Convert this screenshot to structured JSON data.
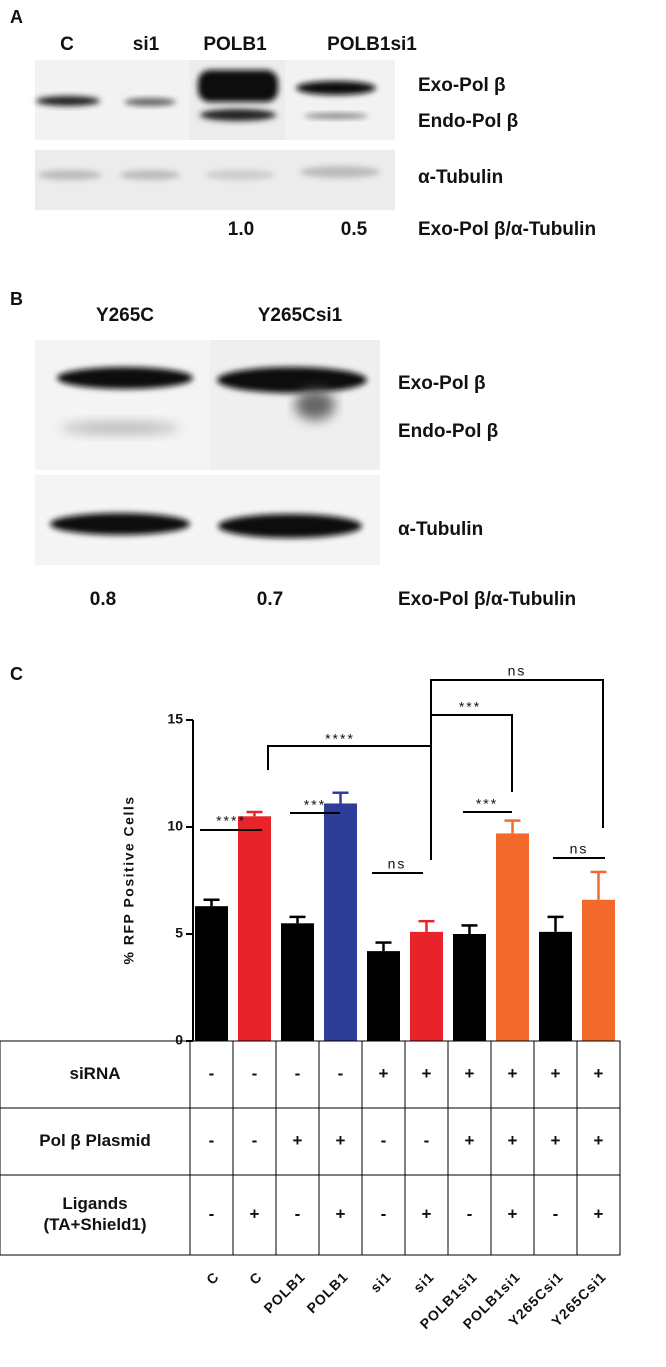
{
  "panel_a": {
    "label": "A",
    "lanes": [
      "C",
      "si1",
      "POLB1",
      "POLB1si1"
    ],
    "bands": [
      "Exo-Pol β",
      "Endo-Pol β",
      "α-Tubulin"
    ],
    "ratio_label": "Exo-Pol β/α-Tubulin",
    "ratios": [
      "1.0",
      "0.5"
    ]
  },
  "panel_b": {
    "label": "B",
    "lanes": [
      "Y265C",
      "Y265Csi1"
    ],
    "bands": [
      "Exo-Pol β",
      "Endo-Pol β",
      "α-Tubulin"
    ],
    "ratio_label": "Exo-Pol β/α-Tubulin",
    "ratios": [
      "0.8",
      "0.7"
    ]
  },
  "panel_c": {
    "label": "C",
    "chart_data": {
      "type": "bar",
      "y_label": "% RFP Positive Cells",
      "categories": [
        "C",
        "C",
        "POLB1",
        "POLB1",
        "si1",
        "si1",
        "POLB1si1",
        "POLB1si1",
        "Y265Csi1",
        "Y265Csi1"
      ],
      "values": [
        6.3,
        10.5,
        5.5,
        11.1,
        4.2,
        5.1,
        5.0,
        9.7,
        5.1,
        6.6
      ],
      "errors": [
        0.3,
        0.2,
        0.3,
        0.5,
        0.4,
        0.5,
        0.4,
        0.6,
        0.7,
        1.3
      ],
      "colors": [
        "#000000",
        "#e8232a",
        "#000000",
        "#2e3d97",
        "#000000",
        "#e8232a",
        "#000000",
        "#f26a2b",
        "#000000",
        "#f26a2b"
      ],
      "ylim": [
        0,
        15
      ],
      "yticks": [
        0,
        5,
        10,
        15
      ],
      "annotations": [
        "****",
        "****",
        "***",
        "ns",
        "***",
        "ns",
        "***",
        "ns"
      ]
    },
    "table": {
      "rows": [
        {
          "label": [
            "siRNA"
          ],
          "cells": [
            "-",
            "-",
            "-",
            "-",
            "+",
            "+",
            "+",
            "+",
            "+",
            "+"
          ]
        },
        {
          "label": [
            "Pol β Plasmid"
          ],
          "cells": [
            "-",
            "-",
            "+",
            "+",
            "-",
            "-",
            "+",
            "+",
            "+",
            "+"
          ]
        },
        {
          "label": [
            "Ligands",
            "(TA+Shield1)"
          ],
          "cells": [
            "-",
            "+",
            "-",
            "+",
            "-",
            "+",
            "-",
            "+",
            "-",
            "+"
          ]
        }
      ]
    }
  }
}
